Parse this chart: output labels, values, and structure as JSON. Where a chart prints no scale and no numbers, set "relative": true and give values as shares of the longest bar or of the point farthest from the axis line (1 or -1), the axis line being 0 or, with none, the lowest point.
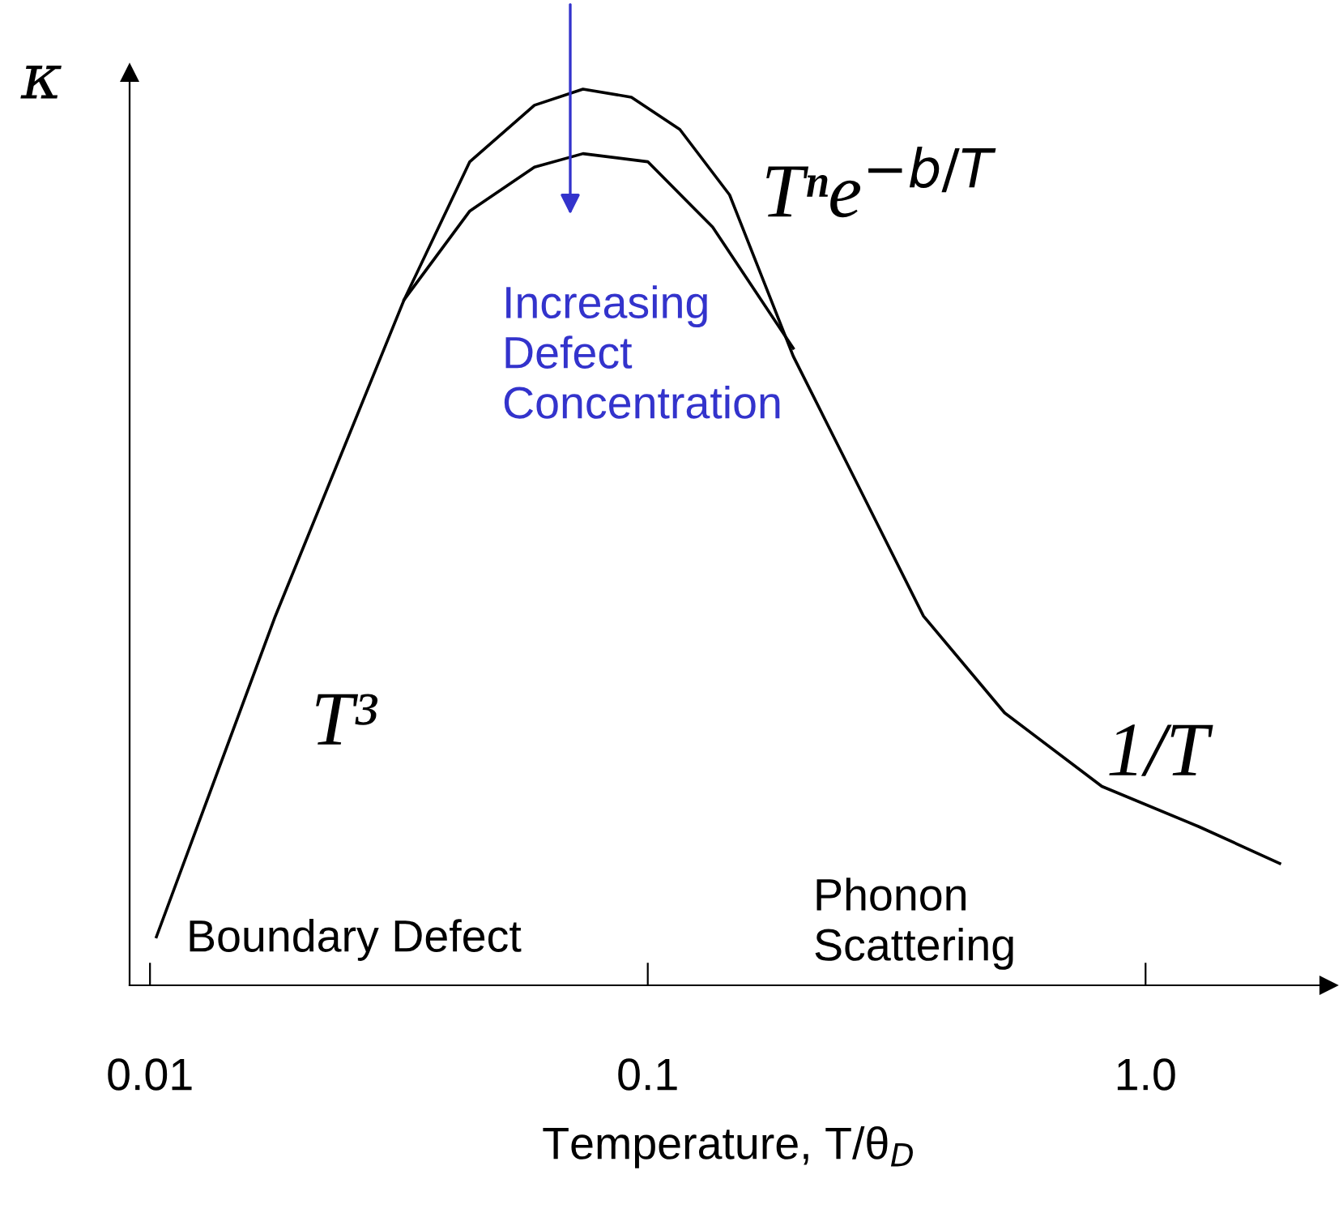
{
  "chart_data": {
    "type": "line",
    "relative": true,
    "log": "x",
    "xlabel": "Temperature, T/θ$_{D}$",
    "ylabel": "κ",
    "xlim": [
      0.0091,
      2.33
    ],
    "xticks": [
      {
        "value": 0.01,
        "label": "0.01"
      },
      {
        "value": 0.1,
        "label": "0.1"
      },
      {
        "value": 1,
        "label": "1.0"
      }
    ],
    "series": [
      {
        "color": "#000000",
        "x": [
          0.0103,
          0.0178,
          0.0324,
          0.0439,
          0.0592,
          0.0741,
          0.0927,
          0.116,
          0.146,
          0.196,
          0.265,
          0.358,
          0.521,
          0.817,
          1.28,
          1.86
        ],
        "values": [
          0.054,
          0.41,
          0.765,
          0.919,
          0.982,
          1.0,
          0.991,
          0.955,
          0.882,
          0.702,
          0.557,
          0.412,
          0.304,
          0.222,
          0.177,
          0.136
        ]
      },
      {
        "color": "#000000",
        "x": [
          0.0324,
          0.0439,
          0.0592,
          0.0741,
          0.1,
          0.135,
          0.196
        ],
        "values": [
          0.765,
          0.864,
          0.913,
          0.928,
          0.919,
          0.846,
          0.711
        ]
      }
    ],
    "annotations": [
      "Increasing\nDefect\nConcentration",
      "Tⁿe$^{−b/T}$",
      "T³",
      "1/T",
      "Boundary Defect",
      "Phonon\nScattering"
    ],
    "grid": false,
    "marker": "none",
    "line_style": "solid"
  }
}
